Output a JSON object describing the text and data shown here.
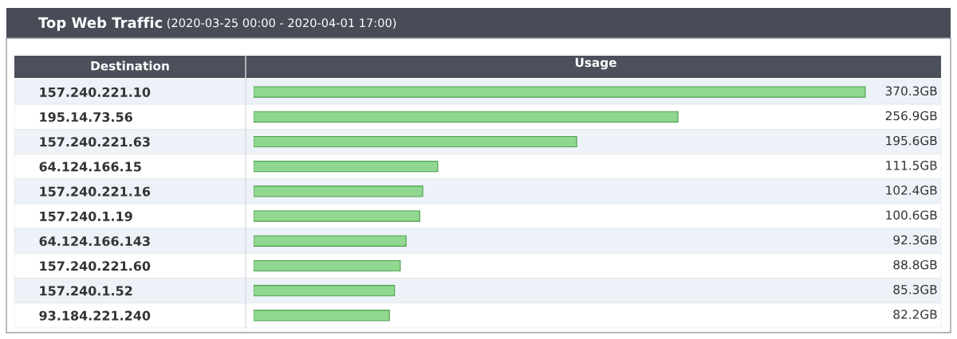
{
  "chart_data": {
    "type": "bar",
    "orientation": "horizontal",
    "title": "Top Web Traffic",
    "subtitle": "(2020-03-25 00:00 - 2020-04-01 17:00)",
    "ylabel": "Destination",
    "xlabel": "Usage",
    "categories": [
      "157.240.221.10",
      "195.14.73.56",
      "157.240.221.63",
      "64.124.166.15",
      "157.240.221.16",
      "157.240.1.19",
      "64.124.166.143",
      "157.240.221.60",
      "157.240.1.52",
      "93.184.221.240"
    ],
    "values": [
      370.3,
      256.9,
      195.6,
      111.5,
      102.4,
      100.6,
      92.3,
      88.8,
      85.3,
      82.2
    ],
    "value_labels": [
      "370.3GB",
      "256.9GB",
      "195.6GB",
      "111.5GB",
      "102.4GB",
      "100.6GB",
      "92.3GB",
      "88.8GB",
      "85.3GB",
      "82.2GB"
    ],
    "color": "#90d890"
  }
}
